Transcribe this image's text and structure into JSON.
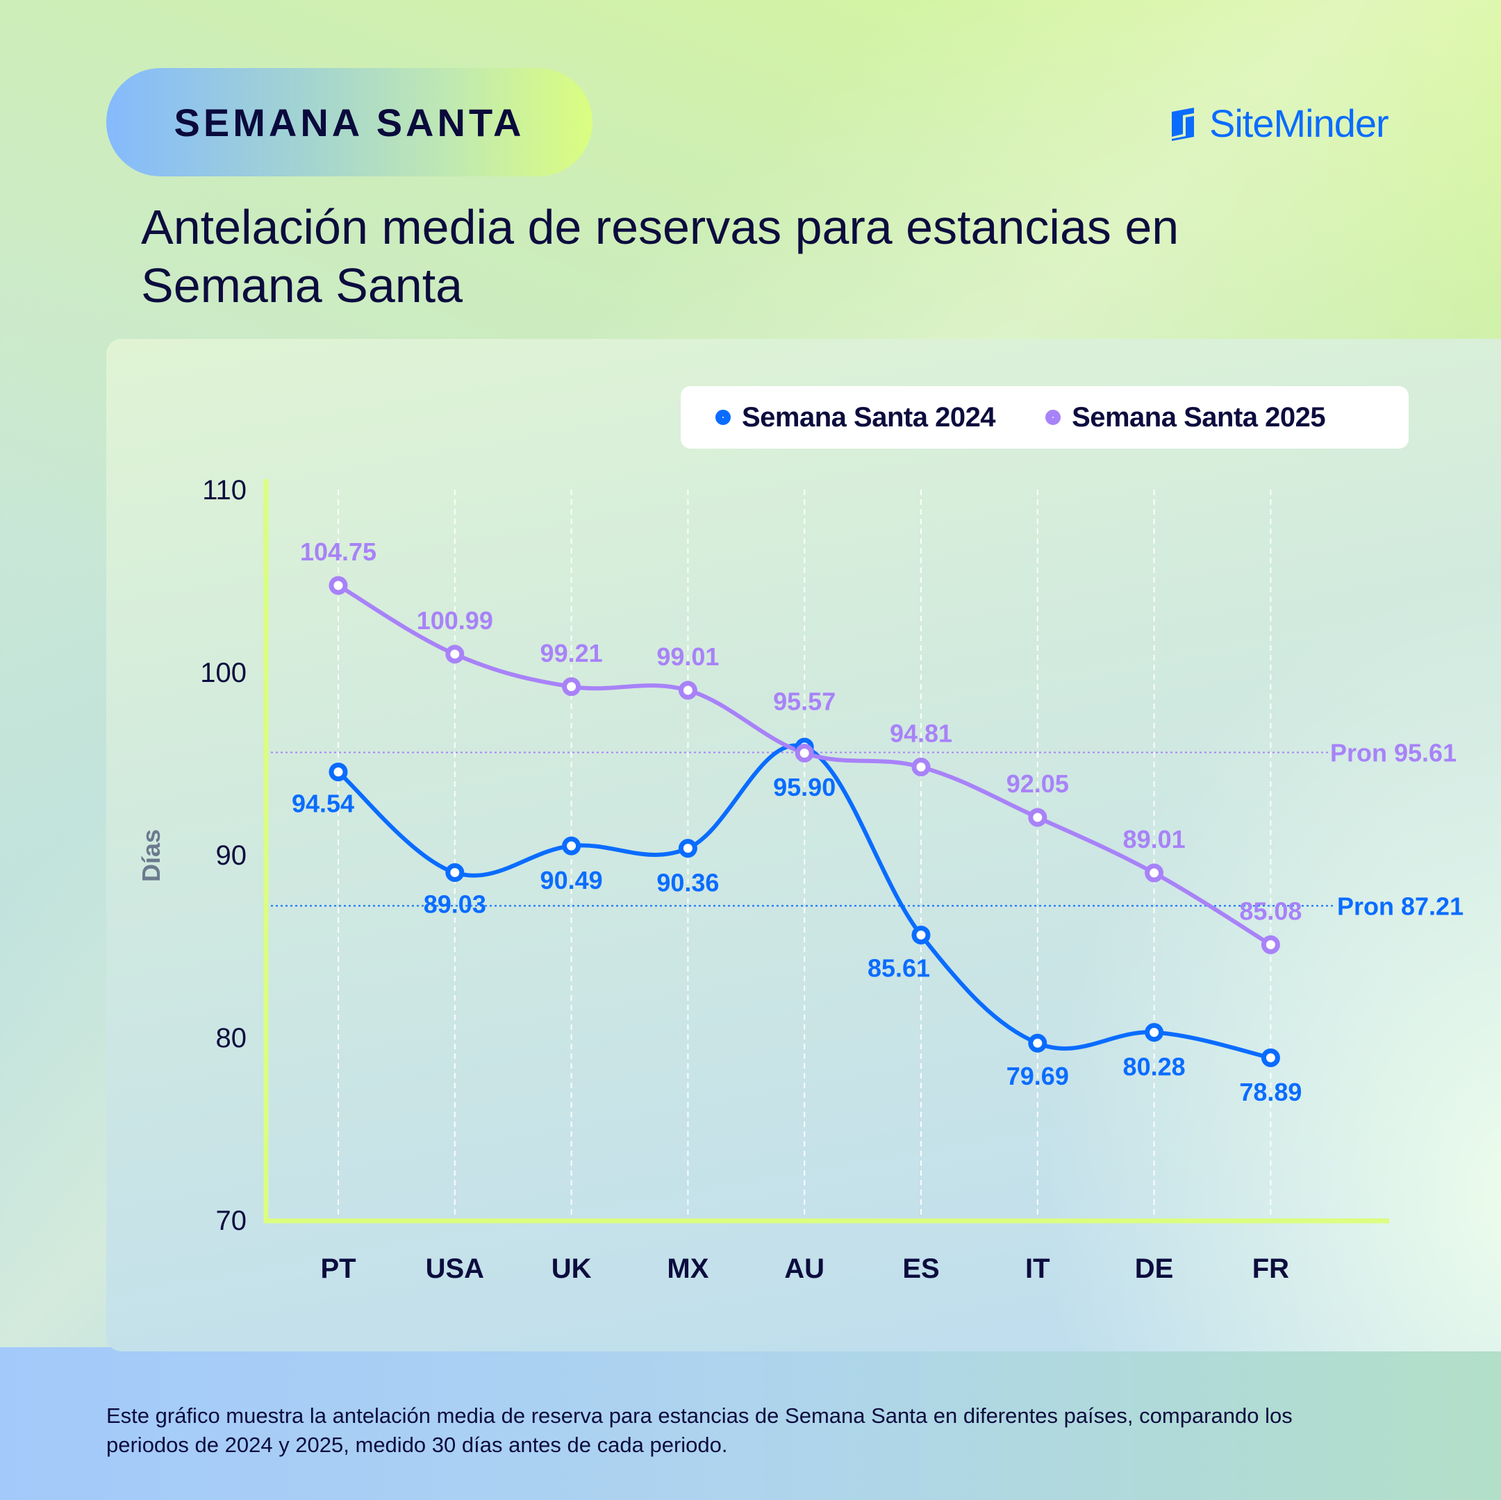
{
  "header": {
    "badge": "SEMANA SANTA",
    "brand": "SiteMinder",
    "brand_icon": "siteminder-logo-icon",
    "title_line1": "Antelación media de reservas para estancias en",
    "title_line2": "Semana Santa"
  },
  "colors": {
    "series_2024": "#0a6cff",
    "series_2025": "#a882f8",
    "axis": "#dbfd80",
    "text": "#0c0c3e"
  },
  "chart_data": {
    "type": "line",
    "title": "Antelación media de reservas para estancias en Semana Santa",
    "xlabel": "",
    "ylabel": "Días",
    "ylim": [
      70,
      110
    ],
    "yticks": [
      70,
      80,
      90,
      100,
      110
    ],
    "grid": "vertical dashed",
    "legend_position": "top-right",
    "categories": [
      "PT",
      "USA",
      "UK",
      "MX",
      "AU",
      "ES",
      "IT",
      "DE",
      "FR"
    ],
    "series": [
      {
        "name": "Semana Santa 2024",
        "color": "#0a6cff",
        "values": [
          94.54,
          89.03,
          90.49,
          90.36,
          95.9,
          85.61,
          79.69,
          80.28,
          78.89
        ],
        "labels": [
          "94.54",
          "89.03",
          "90.49",
          "90.36",
          "95.90",
          "85.61",
          "79.69",
          "80.28",
          "78.89"
        ]
      },
      {
        "name": "Semana Santa 2025",
        "color": "#a882f8",
        "values": [
          104.75,
          100.99,
          99.21,
          99.01,
          95.57,
          94.81,
          92.05,
          89.01,
          85.08
        ],
        "labels": [
          "104.75",
          "100.99",
          "99.21",
          "99.01",
          "95.57",
          "94.81",
          "92.05",
          "89.01",
          "85.08"
        ]
      }
    ],
    "reference_lines": [
      {
        "label": "Pron 95.61",
        "value": 95.61,
        "color": "#a882f8"
      },
      {
        "label": "Pron 87.21",
        "value": 87.21,
        "color": "#0a6cff"
      }
    ]
  },
  "footnote": {
    "line1": "Este gráfico muestra la antelación media de reserva para estancias de Semana Santa en diferentes países, comparando los",
    "line2": "periodos de 2024 y 2025, medido 30 días antes de cada periodo."
  }
}
